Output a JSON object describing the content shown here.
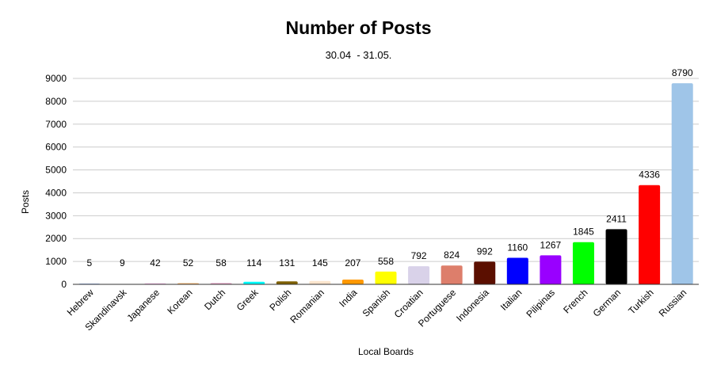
{
  "chart_data": {
    "type": "bar",
    "title": "Number of Posts",
    "subtitle": "30.04  - 31.05.",
    "xlabel": "Local Boards",
    "ylabel": "Posts",
    "ylim": [
      0,
      9000
    ],
    "yticks": [
      0,
      1000,
      2000,
      3000,
      4000,
      5000,
      6000,
      7000,
      8000,
      9000
    ],
    "grid": true,
    "legend": "none",
    "categories": [
      "Hebrew",
      "Skandinavsk",
      "Japanese",
      "Korean",
      "Dutch",
      "Greek",
      "Polish",
      "Romanian",
      "India",
      "Spanish",
      "Croatian",
      "Portuguese",
      "Indonesia",
      "Italian",
      "Pilipinas",
      "French",
      "German",
      "Turkish",
      "Russian"
    ],
    "values": [
      5,
      9,
      42,
      52,
      58,
      114,
      131,
      145,
      207,
      558,
      792,
      824,
      992,
      1160,
      1267,
      1845,
      2411,
      4336,
      8790
    ],
    "colors": [
      "#4a86e8",
      "#ffffff",
      "#f4b6e6",
      "#f6b26b",
      "#e6a0c4",
      "#00ffff",
      "#7f6000",
      "#fce5cd",
      "#ff9900",
      "#ffff00",
      "#d9d2e9",
      "#dd7e6b",
      "#5b0f00",
      "#0000ff",
      "#9900ff",
      "#00ff00",
      "#000000",
      "#ff0000",
      "#9fc5e8"
    ]
  }
}
